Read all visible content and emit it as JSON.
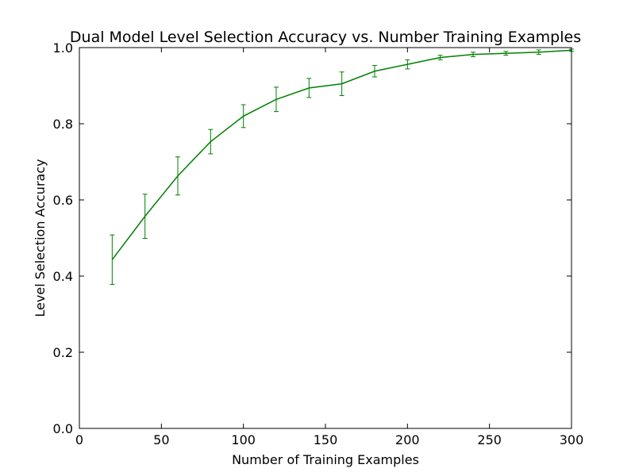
{
  "chart_data": {
    "type": "line",
    "title": "Dual Model Level Selection Accuracy vs. Number Training Examples",
    "xlabel": "Number of Training Examples",
    "ylabel": "Level Selection Accuracy",
    "xlim": [
      0,
      300
    ],
    "ylim": [
      0.0,
      1.0
    ],
    "xticks": [
      0,
      50,
      100,
      150,
      200,
      250,
      300
    ],
    "xtick_labels": [
      "0",
      "50",
      "100",
      "150",
      "200",
      "250",
      "300"
    ],
    "yticks": [
      0.0,
      0.2,
      0.4,
      0.6,
      0.8,
      1.0
    ],
    "ytick_labels": [
      "0.0",
      "0.2",
      "0.4",
      "0.6",
      "0.8",
      "1.0"
    ],
    "grid": false,
    "legend": "none",
    "series": [
      {
        "color": "#008000",
        "x": [
          20,
          40,
          60,
          80,
          100,
          120,
          140,
          160,
          180,
          200,
          220,
          240,
          260,
          280,
          300
        ],
        "y": [
          0.443,
          0.557,
          0.663,
          0.753,
          0.82,
          0.864,
          0.894,
          0.905,
          0.938,
          0.956,
          0.974,
          0.982,
          0.985,
          0.988,
          0.993
        ],
        "error": [
          0.065,
          0.058,
          0.05,
          0.032,
          0.03,
          0.032,
          0.025,
          0.031,
          0.015,
          0.012,
          0.006,
          0.006,
          0.005,
          0.006,
          0.003
        ]
      }
    ]
  }
}
